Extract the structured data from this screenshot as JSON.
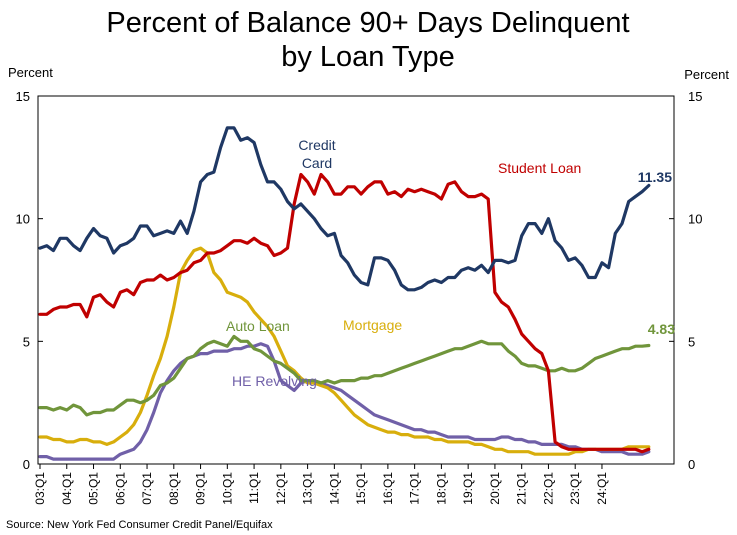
{
  "chart_data": {
    "type": "line",
    "title_line1": "Percent of Balance 90+ Days Delinquent",
    "title_line2": "by Loan Type",
    "ylabel_left": "Percent",
    "ylabel_right": "Percent",
    "ylim": [
      0,
      15
    ],
    "yticks": [
      0,
      5,
      10,
      15
    ],
    "x_tick_labels": [
      "03:Q1",
      "04:Q1",
      "05:Q1",
      "06:Q1",
      "07:Q1",
      "08:Q1",
      "09:Q1",
      "10:Q1",
      "11:Q1",
      "12:Q1",
      "13:Q1",
      "14:Q1",
      "15:Q1",
      "16:Q1",
      "17:Q1",
      "18:Q1",
      "19:Q1",
      "20:Q1",
      "21:Q1",
      "22:Q1",
      "23:Q1",
      "24:Q1"
    ],
    "first_year": 2003,
    "grid": false,
    "source": "Source: New York Fed Consumer Credit Panel/Equifax",
    "series": [
      {
        "name": "Credit Card",
        "label_line1": "Credit",
        "label_line2": "Card",
        "color": "#1f3864",
        "values": [
          8.8,
          8.9,
          8.7,
          9.2,
          9.2,
          8.9,
          8.7,
          9.2,
          9.6,
          9.3,
          9.2,
          8.6,
          8.9,
          9.0,
          9.2,
          9.7,
          9.7,
          9.3,
          9.4,
          9.5,
          9.4,
          9.9,
          9.4,
          10.3,
          11.5,
          11.8,
          11.9,
          12.9,
          13.7,
          13.7,
          13.2,
          13.3,
          13.1,
          12.2,
          11.5,
          11.5,
          11.2,
          10.7,
          10.4,
          10.6,
          10.3,
          10.0,
          9.6,
          9.3,
          9.4,
          8.5,
          8.2,
          7.7,
          7.4,
          7.3,
          8.4,
          8.4,
          8.3,
          7.9,
          7.3,
          7.1,
          7.1,
          7.2,
          7.4,
          7.5,
          7.4,
          7.6,
          7.6,
          7.9,
          8.0,
          7.9,
          8.1,
          7.8,
          8.3,
          8.3,
          8.2,
          8.3,
          9.3,
          9.8,
          9.8,
          9.4,
          10.0,
          9.1,
          8.8,
          8.3,
          8.4,
          8.1,
          7.6,
          7.6,
          8.2,
          8.0,
          9.4,
          9.8,
          10.7,
          10.9,
          11.1,
          11.35
        ]
      },
      {
        "name": "Student Loan",
        "label": "Student Loan",
        "color": "#c00000",
        "values": [
          6.1,
          6.1,
          6.3,
          6.4,
          6.4,
          6.5,
          6.5,
          6.0,
          6.8,
          6.9,
          6.6,
          6.4,
          7.0,
          7.1,
          6.9,
          7.4,
          7.5,
          7.5,
          7.7,
          7.5,
          7.6,
          7.8,
          7.9,
          8.2,
          8.3,
          8.6,
          8.6,
          8.7,
          8.9,
          9.1,
          9.1,
          9.0,
          9.2,
          9.0,
          8.9,
          8.5,
          8.6,
          8.8,
          10.6,
          11.8,
          11.5,
          11.0,
          11.8,
          11.5,
          11.0,
          11.0,
          11.3,
          11.3,
          11.0,
          11.3,
          11.5,
          11.5,
          11.0,
          11.1,
          10.9,
          11.2,
          11.1,
          11.2,
          11.1,
          11.0,
          10.8,
          11.4,
          11.5,
          11.1,
          10.9,
          10.9,
          11.0,
          10.8,
          7.0,
          6.6,
          6.4,
          5.9,
          5.3,
          5.0,
          4.7,
          4.5,
          3.8,
          0.9,
          0.7,
          0.6,
          0.6,
          0.6,
          0.6,
          0.6,
          0.6,
          0.6,
          0.6,
          0.6,
          0.6,
          0.6,
          0.5,
          0.6
        ]
      },
      {
        "name": "Auto Loan",
        "label": "Auto Loan",
        "color": "#70953b",
        "values": [
          2.3,
          2.3,
          2.2,
          2.3,
          2.2,
          2.4,
          2.3,
          2.0,
          2.1,
          2.1,
          2.2,
          2.2,
          2.4,
          2.6,
          2.6,
          2.5,
          2.6,
          2.8,
          3.2,
          3.3,
          3.5,
          3.9,
          4.3,
          4.4,
          4.7,
          4.9,
          5.0,
          4.9,
          4.8,
          5.2,
          5.0,
          5.0,
          4.7,
          4.6,
          4.4,
          4.2,
          4.1,
          3.9,
          3.7,
          3.4,
          3.4,
          3.4,
          3.3,
          3.4,
          3.3,
          3.4,
          3.4,
          3.4,
          3.5,
          3.5,
          3.6,
          3.6,
          3.7,
          3.8,
          3.9,
          4.0,
          4.1,
          4.2,
          4.3,
          4.4,
          4.5,
          4.6,
          4.7,
          4.7,
          4.8,
          4.9,
          5.0,
          4.9,
          4.9,
          4.9,
          4.6,
          4.4,
          4.1,
          4.0,
          4.0,
          3.9,
          3.8,
          3.8,
          3.9,
          3.8,
          3.8,
          3.9,
          4.1,
          4.3,
          4.4,
          4.5,
          4.6,
          4.7,
          4.7,
          4.8,
          4.8,
          4.83
        ]
      },
      {
        "name": "Mortgage",
        "label": "Mortgage",
        "color": "#d8ae0c",
        "values": [
          1.1,
          1.1,
          1.0,
          1.0,
          0.9,
          0.9,
          1.0,
          1.0,
          0.9,
          0.9,
          0.8,
          0.9,
          1.1,
          1.3,
          1.6,
          2.1,
          2.8,
          3.6,
          4.3,
          5.2,
          6.4,
          7.8,
          8.3,
          8.7,
          8.8,
          8.6,
          7.8,
          7.5,
          7.0,
          6.9,
          6.8,
          6.6,
          6.2,
          5.9,
          5.6,
          5.2,
          4.6,
          4.0,
          3.8,
          3.5,
          3.3,
          3.3,
          3.2,
          3.1,
          2.9,
          2.6,
          2.3,
          2.0,
          1.8,
          1.6,
          1.5,
          1.4,
          1.3,
          1.3,
          1.2,
          1.2,
          1.1,
          1.1,
          1.1,
          1.0,
          1.0,
          0.9,
          0.9,
          0.9,
          0.9,
          0.8,
          0.8,
          0.7,
          0.6,
          0.6,
          0.5,
          0.5,
          0.5,
          0.5,
          0.4,
          0.4,
          0.4,
          0.4,
          0.4,
          0.4,
          0.5,
          0.5,
          0.6,
          0.6,
          0.6,
          0.6,
          0.6,
          0.6,
          0.7,
          0.7,
          0.7,
          0.7
        ]
      },
      {
        "name": "HE Revolving",
        "label": "HE Revolving",
        "color": "#7060a8",
        "values": [
          0.3,
          0.3,
          0.2,
          0.2,
          0.2,
          0.2,
          0.2,
          0.2,
          0.2,
          0.2,
          0.2,
          0.2,
          0.4,
          0.5,
          0.6,
          0.9,
          1.4,
          2.1,
          2.9,
          3.4,
          3.8,
          4.1,
          4.3,
          4.4,
          4.5,
          4.5,
          4.6,
          4.6,
          4.6,
          4.7,
          4.7,
          4.8,
          4.8,
          4.9,
          4.8,
          4.2,
          3.4,
          3.2,
          3.0,
          3.3,
          3.4,
          3.4,
          3.3,
          3.2,
          3.1,
          3.0,
          2.8,
          2.6,
          2.4,
          2.2,
          2.0,
          1.9,
          1.8,
          1.7,
          1.6,
          1.5,
          1.4,
          1.4,
          1.3,
          1.3,
          1.2,
          1.1,
          1.1,
          1.1,
          1.1,
          1.0,
          1.0,
          1.0,
          1.0,
          1.1,
          1.1,
          1.0,
          1.0,
          0.9,
          0.9,
          0.8,
          0.8,
          0.8,
          0.8,
          0.7,
          0.7,
          0.6,
          0.6,
          0.6,
          0.5,
          0.5,
          0.5,
          0.5,
          0.4,
          0.4,
          0.4,
          0.5
        ]
      }
    ],
    "value_labels": [
      {
        "series": "Credit Card",
        "text": "11.35"
      },
      {
        "series": "Auto Loan",
        "text": "4.83"
      }
    ]
  }
}
